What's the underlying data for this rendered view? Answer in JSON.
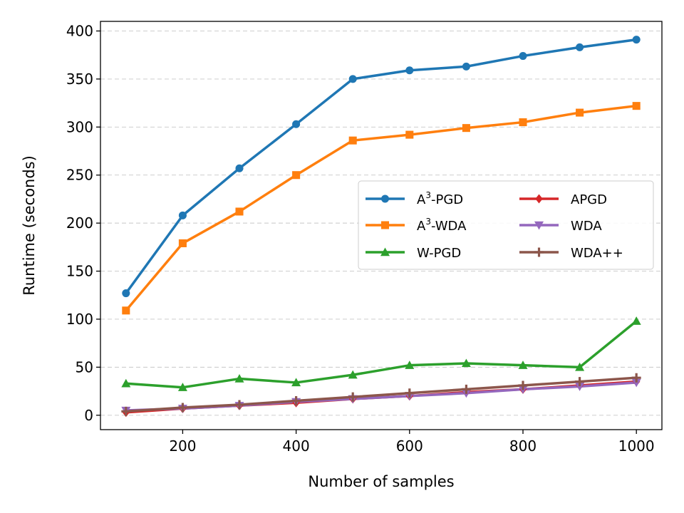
{
  "chart_data": {
    "type": "line",
    "title": "",
    "xlabel": "Number of samples",
    "ylabel": "Runtime (seconds)",
    "xlim": [
      55,
      1045
    ],
    "ylim": [
      -15,
      410
    ],
    "xticks": [
      200,
      400,
      600,
      800,
      1000
    ],
    "yticks": [
      0,
      50,
      100,
      150,
      200,
      250,
      300,
      350,
      400
    ],
    "grid": "horizontal dashed",
    "legend_position": "center-right",
    "x": [
      100,
      200,
      300,
      400,
      500,
      600,
      700,
      800,
      900,
      1000
    ],
    "series": [
      {
        "name": "A3-PGD",
        "label_base": "A",
        "label_sup": "3",
        "label_rest": "-PGD",
        "color": "#1f77b4",
        "marker": "circle",
        "values": [
          127,
          208,
          257,
          303,
          350,
          359,
          363,
          374,
          383,
          391
        ]
      },
      {
        "name": "A3-WDA",
        "label_base": "A",
        "label_sup": "3",
        "label_rest": "-WDA",
        "color": "#ff7f0e",
        "marker": "square",
        "values": [
          109,
          179,
          212,
          250,
          286,
          292,
          299,
          305,
          315,
          322
        ]
      },
      {
        "name": "W-PGD",
        "label_base": "W-PGD",
        "label_sup": "",
        "label_rest": "",
        "color": "#2ca02c",
        "marker": "triangle-up",
        "values": [
          33,
          29,
          38,
          34,
          42,
          52,
          54,
          52,
          50,
          98
        ]
      },
      {
        "name": "APGD",
        "label_base": "APGD",
        "label_sup": "",
        "label_rest": "",
        "color": "#d62728",
        "marker": "diamond",
        "values": [
          3,
          7,
          10,
          13,
          17,
          20,
          24,
          27,
          31,
          35
        ]
      },
      {
        "name": "WDA",
        "label_base": "WDA",
        "label_sup": "",
        "label_rest": "",
        "color": "#9467bd",
        "marker": "triangle-down",
        "values": [
          5,
          7,
          10,
          14,
          17,
          20,
          23,
          27,
          30,
          34
        ]
      },
      {
        "name": "WDA++",
        "label_base": "WDA++",
        "label_sup": "",
        "label_rest": "",
        "color": "#8c564b",
        "marker": "plus",
        "values": [
          4,
          8,
          11,
          15,
          19,
          23,
          27,
          31,
          35,
          39
        ]
      }
    ]
  }
}
